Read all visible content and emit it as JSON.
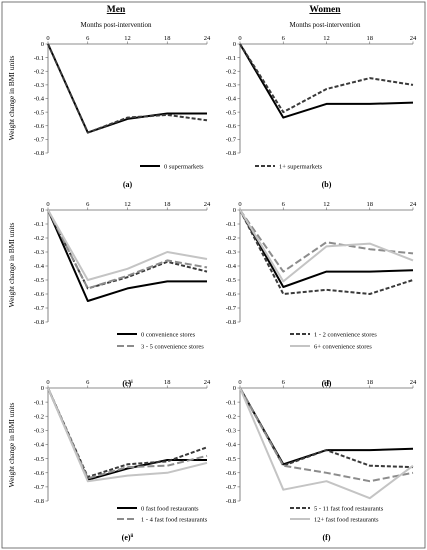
{
  "figure": {
    "col_titles": [
      "Men",
      "Women"
    ],
    "subtitle": "Months post-intervention",
    "ylabel": "Weight change in BMI units"
  },
  "chart_data": [
    {
      "type": "line",
      "panel": "a",
      "label": "(a)",
      "label_sup": "",
      "group": "Men",
      "x": [
        0,
        6,
        12,
        18,
        24
      ],
      "ylim": [
        -0.8,
        0
      ],
      "yticks": [
        0,
        -0.1,
        -0.2,
        -0.3,
        -0.4,
        -0.5,
        -0.6,
        -0.7,
        -0.8
      ],
      "series": [
        {
          "name": "0 supermarkets",
          "values": [
            0,
            -0.65,
            -0.55,
            -0.51,
            -0.51
          ]
        },
        {
          "name": "1+ supermarkets",
          "values": [
            0,
            -0.65,
            -0.54,
            -0.52,
            -0.56
          ]
        }
      ]
    },
    {
      "type": "line",
      "panel": "b",
      "label": "(b)",
      "label_sup": "",
      "group": "Women",
      "x": [
        0,
        6,
        12,
        18,
        24
      ],
      "ylim": [
        -0.8,
        0
      ],
      "yticks": [
        0,
        -0.1,
        -0.2,
        -0.3,
        -0.4,
        -0.5,
        -0.6,
        -0.7,
        -0.8
      ],
      "series": [
        {
          "name": "0 supermarkets",
          "values": [
            0,
            -0.54,
            -0.44,
            -0.44,
            -0.43
          ]
        },
        {
          "name": "1+ supermarkets",
          "values": [
            0,
            -0.5,
            -0.33,
            -0.25,
            -0.3
          ]
        }
      ]
    },
    {
      "type": "line",
      "panel": "c",
      "label": "(c)",
      "label_sup": "i",
      "group": "Men",
      "x": [
        0,
        6,
        12,
        18,
        24
      ],
      "ylim": [
        -0.8,
        0
      ],
      "yticks": [
        0,
        -0.1,
        -0.2,
        -0.3,
        -0.4,
        -0.5,
        -0.6,
        -0.7,
        -0.8
      ],
      "series": [
        {
          "name": "0 convenience stores",
          "values": [
            0,
            -0.65,
            -0.56,
            -0.51,
            -0.51
          ]
        },
        {
          "name": "1 - 2 convenience stores",
          "values": [
            0,
            -0.56,
            -0.48,
            -0.37,
            -0.44
          ]
        },
        {
          "name": "3 - 5 convenience stores",
          "values": [
            0,
            -0.56,
            -0.47,
            -0.36,
            -0.41
          ]
        },
        {
          "name": "6+ convenience stores",
          "values": [
            0,
            -0.5,
            -0.42,
            -0.3,
            -0.35
          ]
        }
      ]
    },
    {
      "type": "line",
      "panel": "d",
      "label": "(d)",
      "label_sup": "",
      "group": "Women",
      "x": [
        0,
        6,
        12,
        18,
        24
      ],
      "ylim": [
        -0.8,
        0
      ],
      "yticks": [
        0,
        -0.1,
        -0.2,
        -0.3,
        -0.4,
        -0.5,
        -0.6,
        -0.7,
        -0.8
      ],
      "series": [
        {
          "name": "0 convenience stores",
          "values": [
            0,
            -0.55,
            -0.44,
            -0.44,
            -0.43
          ]
        },
        {
          "name": "1 - 2 convenience stores",
          "values": [
            0,
            -0.6,
            -0.57,
            -0.6,
            -0.5
          ]
        },
        {
          "name": "3 - 5 convenience stores",
          "values": [
            0,
            -0.44,
            -0.23,
            -0.28,
            -0.31
          ]
        },
        {
          "name": "6+ convenience stores",
          "values": [
            0,
            -0.51,
            -0.26,
            -0.24,
            -0.36
          ]
        }
      ]
    },
    {
      "type": "line",
      "panel": "e",
      "label": "(e)",
      "label_sup": "ii",
      "group": "Men",
      "x": [
        0,
        6,
        12,
        18,
        24
      ],
      "ylim": [
        -0.8,
        0
      ],
      "yticks": [
        0,
        -0.1,
        -0.2,
        -0.3,
        -0.4,
        -0.5,
        -0.6,
        -0.7,
        -0.8
      ],
      "series": [
        {
          "name": "0 fast food restaurants",
          "values": [
            0,
            -0.65,
            -0.57,
            -0.51,
            -0.51
          ]
        },
        {
          "name": "5 - 11 fast food restaurants",
          "values": [
            0,
            -0.63,
            -0.54,
            -0.52,
            -0.42
          ]
        },
        {
          "name": "1 - 4 fast food restaurants",
          "values": [
            0,
            -0.64,
            -0.56,
            -0.55,
            -0.48
          ]
        },
        {
          "name": "12+ fast food restaurants",
          "values": [
            0,
            -0.66,
            -0.62,
            -0.6,
            -0.53
          ]
        }
      ]
    },
    {
      "type": "line",
      "panel": "f",
      "label": "(f)",
      "label_sup": "",
      "group": "Women",
      "x": [
        0,
        6,
        12,
        18,
        24
      ],
      "ylim": [
        -0.8,
        0
      ],
      "yticks": [
        0,
        -0.1,
        -0.2,
        -0.3,
        -0.4,
        -0.5,
        -0.6,
        -0.7,
        -0.8
      ],
      "series": [
        {
          "name": "0 fast food restaurants",
          "values": [
            0,
            -0.54,
            -0.44,
            -0.44,
            -0.43
          ]
        },
        {
          "name": "5 - 11 fast food restaurants",
          "values": [
            0,
            -0.55,
            -0.44,
            -0.55,
            -0.56
          ]
        },
        {
          "name": "1 - 4 fast food restaurants",
          "values": [
            0,
            -0.55,
            -0.6,
            -0.66,
            -0.6
          ]
        },
        {
          "name": "12+ fast food restaurants",
          "values": [
            0,
            -0.72,
            -0.66,
            -0.78,
            -0.55
          ]
        }
      ]
    }
  ],
  "legend_rows": [
    [
      "0 supermarkets",
      "1+ supermarkets"
    ],
    [
      "0 convenience stores",
      "1 - 2 convenience stores",
      "3 - 5 convenience stores",
      "6+ convenience stores"
    ],
    [
      "0 fast food restaurants",
      "5 - 11 fast food restaurants",
      "1 - 4 fast food restaurants",
      "12+ fast food restaurants"
    ]
  ],
  "series_styles": [
    {
      "color": "#000000",
      "dash": "none"
    },
    {
      "color": "#3a3a3a",
      "dash": "4,2"
    },
    {
      "color": "#8c8c8c",
      "dash": "7,3"
    },
    {
      "color": "#c4c4c4",
      "dash": "none"
    }
  ]
}
